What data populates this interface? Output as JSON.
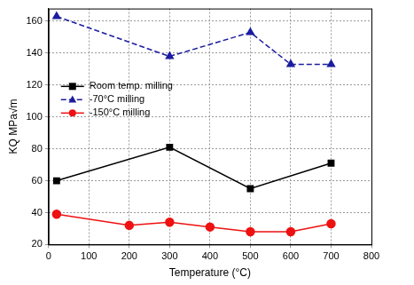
{
  "chart_data": {
    "type": "line",
    "x_label": "Temperature (°C)",
    "y_label": "KQ MPa√m",
    "xlim": [
      0,
      800
    ],
    "xticks": [
      0,
      100,
      200,
      300,
      400,
      500,
      600,
      700,
      800
    ],
    "ylim": [
      20,
      168
    ],
    "yticks": [
      20,
      40,
      60,
      80,
      100,
      120,
      140,
      160
    ],
    "grid": true,
    "legend": "upper left",
    "series": [
      {
        "name": "Room temp. milling",
        "color": "#000000",
        "marker": "square",
        "line_style": "solid",
        "x": [
          20,
          300,
          500,
          700
        ],
        "values": [
          60,
          81,
          55,
          71
        ]
      },
      {
        "name": "-70°C milling",
        "color": "#1c1ca0",
        "marker": "triangle",
        "line_style": "dashed",
        "x": [
          20,
          300,
          500,
          600,
          700
        ],
        "values": [
          163,
          138,
          153,
          133,
          133
        ]
      },
      {
        "name": "-150°C milling",
        "color": "#ee1111",
        "marker": "circle",
        "line_style": "solid",
        "x": [
          20,
          200,
          300,
          400,
          500,
          600,
          700
        ],
        "values": [
          39,
          32,
          34,
          31,
          28,
          28,
          33
        ]
      }
    ]
  }
}
